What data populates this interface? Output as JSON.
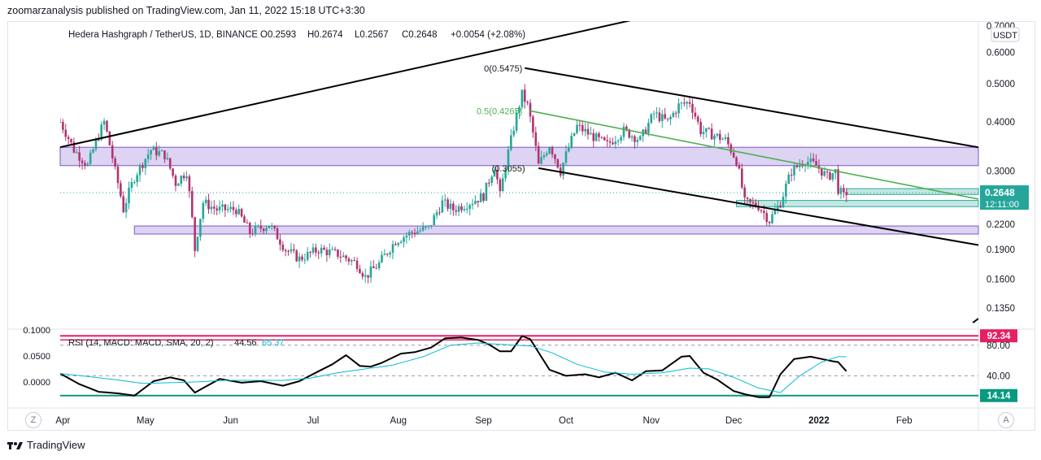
{
  "header": {
    "published": "zoomarzanalysis published on TradingView.com, Jan 11, 2022 15:18 UTC+3:30"
  },
  "legend": {
    "symbol": "Hedera Hashgraph / TetherUS, 1D, BINANCE",
    "open": "O0.2593",
    "high": "H0.2674",
    "low": "L0.2567",
    "close": "C0.2648",
    "change": "+0.0054 (+2.08%)"
  },
  "footer": {
    "brand": "TradingView",
    "zoom_button": "Z",
    "auto_button": "A"
  },
  "colors": {
    "up": "#26a69a",
    "down": "#b2346e",
    "zone_fill": "#d4c8ef",
    "zone_border": "#7e57c2",
    "green_zone": "#b2dfdb",
    "fib_green": "#4caf50",
    "rsi_line": "#000000",
    "ma_line": "#00bcd4",
    "upper_band": "#e91e63",
    "lower_band": "#089981",
    "price_badge": "#26a69a"
  },
  "chart_data": [
    {
      "type": "candlestick",
      "title": "",
      "symbol": "Hedera Hashgraph / TetherUS, 1D, BINANCE",
      "y_scale": "log",
      "currency_label": "USDT",
      "ylim": [
        0.12,
        0.72
      ],
      "y_ticks": [
        "0.7000",
        "0.6000",
        "0.5000",
        "0.4000",
        "0.3000",
        "0.2200",
        "0.1900",
        "0.1600",
        "0.1350"
      ],
      "y_tick_values": [
        0.7,
        0.6,
        0.5,
        0.4,
        0.3,
        0.22,
        0.19,
        0.16,
        0.135
      ],
      "x_ticks": [
        "Apr",
        "May",
        "Jun",
        "Jul",
        "Aug",
        "Sep",
        "Oct",
        "Nov",
        "Dec",
        "2022",
        "Feb"
      ],
      "x_tick_dates": [
        "2021-04-01",
        "2021-05-01",
        "2021-06-01",
        "2021-07-01",
        "2021-08-01",
        "2021-09-01",
        "2021-10-01",
        "2021-11-01",
        "2021-12-01",
        "2022-01-01",
        "2022-02-01"
      ],
      "x_range": [
        "2021-03-31",
        "2022-02-28"
      ],
      "last_price": {
        "label": "0.2648",
        "value": 0.2648,
        "countdown": "12:11:00"
      },
      "closes": [
        {
          "date": "2021-03-31",
          "close": 0.4
        },
        {
          "date": "2021-04-05",
          "close": 0.34
        },
        {
          "date": "2021-04-10",
          "close": 0.31
        },
        {
          "date": "2021-04-16",
          "close": 0.4
        },
        {
          "date": "2021-04-20",
          "close": 0.3
        },
        {
          "date": "2021-04-23",
          "close": 0.24
        },
        {
          "date": "2021-04-27",
          "close": 0.29
        },
        {
          "date": "2021-05-03",
          "close": 0.34
        },
        {
          "date": "2021-05-08",
          "close": 0.33
        },
        {
          "date": "2021-05-12",
          "close": 0.28
        },
        {
          "date": "2021-05-16",
          "close": 0.3
        },
        {
          "date": "2021-05-19",
          "close": 0.19
        },
        {
          "date": "2021-05-22",
          "close": 0.25
        },
        {
          "date": "2021-05-27",
          "close": 0.24
        },
        {
          "date": "2021-06-03",
          "close": 0.24
        },
        {
          "date": "2021-06-08",
          "close": 0.21
        },
        {
          "date": "2021-06-15",
          "close": 0.22
        },
        {
          "date": "2021-06-21",
          "close": 0.19
        },
        {
          "date": "2021-06-26",
          "close": 0.18
        },
        {
          "date": "2021-07-03",
          "close": 0.19
        },
        {
          "date": "2021-07-10",
          "close": 0.185
        },
        {
          "date": "2021-07-17",
          "close": 0.175
        },
        {
          "date": "2021-07-20",
          "close": 0.162
        },
        {
          "date": "2021-07-25",
          "close": 0.175
        },
        {
          "date": "2021-07-31",
          "close": 0.2
        },
        {
          "date": "2021-08-06",
          "close": 0.21
        },
        {
          "date": "2021-08-12",
          "close": 0.215
        },
        {
          "date": "2021-08-17",
          "close": 0.25
        },
        {
          "date": "2021-08-21",
          "close": 0.24
        },
        {
          "date": "2021-08-27",
          "close": 0.25
        },
        {
          "date": "2021-09-01",
          "close": 0.26
        },
        {
          "date": "2021-09-05",
          "close": 0.31
        },
        {
          "date": "2021-09-07",
          "close": 0.26
        },
        {
          "date": "2021-09-11",
          "close": 0.36
        },
        {
          "date": "2021-09-15",
          "close": 0.47
        },
        {
          "date": "2021-09-17",
          "close": 0.44
        },
        {
          "date": "2021-09-21",
          "close": 0.31
        },
        {
          "date": "2021-09-25",
          "close": 0.35
        },
        {
          "date": "2021-09-29",
          "close": 0.3
        },
        {
          "date": "2021-10-05",
          "close": 0.39
        },
        {
          "date": "2021-10-10",
          "close": 0.37
        },
        {
          "date": "2021-10-16",
          "close": 0.35
        },
        {
          "date": "2021-10-22",
          "close": 0.38
        },
        {
          "date": "2021-10-28",
          "close": 0.36
        },
        {
          "date": "2021-11-02",
          "close": 0.42
        },
        {
          "date": "2021-11-07",
          "close": 0.4
        },
        {
          "date": "2021-11-11",
          "close": 0.44
        },
        {
          "date": "2021-11-15",
          "close": 0.45
        },
        {
          "date": "2021-11-19",
          "close": 0.38
        },
        {
          "date": "2021-11-24",
          "close": 0.37
        },
        {
          "date": "2021-11-28",
          "close": 0.36
        },
        {
          "date": "2021-12-02",
          "close": 0.32
        },
        {
          "date": "2021-12-05",
          "close": 0.25
        },
        {
          "date": "2021-12-10",
          "close": 0.245
        },
        {
          "date": "2021-12-14",
          "close": 0.225
        },
        {
          "date": "2021-12-18",
          "close": 0.25
        },
        {
          "date": "2021-12-22",
          "close": 0.3
        },
        {
          "date": "2021-12-27",
          "close": 0.32
        },
        {
          "date": "2021-12-31",
          "close": 0.31
        },
        {
          "date": "2022-01-04",
          "close": 0.29
        },
        {
          "date": "2022-01-07",
          "close": 0.3
        },
        {
          "date": "2022-01-08",
          "close": 0.27
        },
        {
          "date": "2022-01-10",
          "close": 0.2594
        },
        {
          "date": "2022-01-11",
          "close": 0.2648
        }
      ],
      "horizontal_zones": [
        {
          "name": "upper-resistance-zone",
          "from_date": "2021-03-31",
          "to_date": "2022-02-28",
          "low": 0.31,
          "high": 0.345
        },
        {
          "name": "lower-support-zone",
          "from_date": "2021-04-27",
          "to_date": "2022-02-28",
          "low": 0.208,
          "high": 0.218
        },
        {
          "name": "recent-demand-zone",
          "from_date": "2021-12-02",
          "to_date": "2022-02-28",
          "low": 0.244,
          "high": 0.253
        },
        {
          "name": "recent-demand-zone-upper",
          "from_date": "2022-01-11",
          "to_date": "2022-02-28",
          "low": 0.262,
          "high": 0.271
        }
      ],
      "trendlines": [
        {
          "name": "long-term-rising-resistance",
          "color": "#000000",
          "points": [
            [
              "2021-03-31",
              0.345
            ],
            [
              "2021-10-31",
              0.74
            ]
          ]
        },
        {
          "name": "descending-channel-top",
          "color": "#000000",
          "points": [
            [
              "2021-09-16",
              0.5475
            ],
            [
              "2022-02-28",
              0.345
            ]
          ]
        },
        {
          "name": "descending-channel-bottom",
          "color": "#000000",
          "points": [
            [
              "2021-09-21",
              0.3055
            ],
            [
              "2022-02-28",
              0.195
            ]
          ]
        },
        {
          "name": "fib-0.5-line",
          "color": "#4caf50",
          "points": [
            [
              "2021-09-18",
              0.4265
            ],
            [
              "2022-02-28",
              0.255
            ]
          ]
        },
        {
          "name": "channel-extension-top-right",
          "color": "#000000",
          "points": [
            [
              "2022-02-26",
              0.124
            ],
            [
              "2022-02-28",
              0.127
            ]
          ]
        }
      ],
      "annotations": [
        {
          "text": "0(0.5475)",
          "date": "2021-09-16",
          "price": 0.5475
        },
        {
          "text": "0.5(0.4265)",
          "date": "2021-09-16",
          "price": 0.4265
        },
        {
          "text": "(0.3055)",
          "date": "2021-09-17",
          "price": 0.3055
        }
      ]
    },
    {
      "type": "line",
      "title": "",
      "indicator": "RSI (14, MACD: MACD, SMA, 20, 2)",
      "indicator_values": [
        "44.56",
        "65.37"
      ],
      "left_ticks": [
        "0.1000",
        "0.0500",
        "0.0000"
      ],
      "right_ticks": [
        "80.00",
        "40.00"
      ],
      "ylim": [
        0,
        100
      ],
      "bands": [
        {
          "name": "upper-band",
          "label": "92.34",
          "value": 92.34,
          "color": "#e91e63"
        },
        {
          "name": "lower-band",
          "label": "14.14",
          "value": 14.14,
          "color": "#089981"
        }
      ],
      "reference_levels": [
        80,
        40
      ],
      "series": [
        {
          "name": "",
          "color": "#000000",
          "points": [
            [
              "2021-03-31",
              43
            ],
            [
              "2021-04-07",
              29
            ],
            [
              "2021-04-14",
              19
            ],
            [
              "2021-04-21",
              17
            ],
            [
              "2021-04-27",
              14
            ],
            [
              "2021-05-04",
              33
            ],
            [
              "2021-05-10",
              38
            ],
            [
              "2021-05-15",
              34
            ],
            [
              "2021-05-19",
              18
            ],
            [
              "2021-05-24",
              28
            ],
            [
              "2021-05-28",
              36
            ],
            [
              "2021-06-05",
              31
            ],
            [
              "2021-06-12",
              33
            ],
            [
              "2021-06-20",
              27
            ],
            [
              "2021-06-26",
              33
            ],
            [
              "2021-07-03",
              46
            ],
            [
              "2021-07-08",
              55
            ],
            [
              "2021-07-13",
              67
            ],
            [
              "2021-07-18",
              53
            ],
            [
              "2021-07-22",
              52
            ],
            [
              "2021-07-26",
              57
            ],
            [
              "2021-08-02",
              69
            ],
            [
              "2021-08-07",
              71
            ],
            [
              "2021-08-13",
              77
            ],
            [
              "2021-08-18",
              89
            ],
            [
              "2021-08-24",
              90
            ],
            [
              "2021-08-30",
              87
            ],
            [
              "2021-09-03",
              81
            ],
            [
              "2021-09-07",
              72
            ],
            [
              "2021-09-11",
              72
            ],
            [
              "2021-09-15",
              92
            ],
            [
              "2021-09-18",
              88
            ],
            [
              "2021-09-22",
              65
            ],
            [
              "2021-09-25",
              48
            ],
            [
              "2021-10-01",
              40
            ],
            [
              "2021-10-08",
              42
            ],
            [
              "2021-10-13",
              38
            ],
            [
              "2021-10-19",
              44
            ],
            [
              "2021-10-25",
              34
            ],
            [
              "2021-10-30",
              46
            ],
            [
              "2021-11-05",
              47
            ],
            [
              "2021-11-12",
              65
            ],
            [
              "2021-11-15",
              66
            ],
            [
              "2021-11-20",
              44
            ],
            [
              "2021-11-25",
              35
            ],
            [
              "2021-12-01",
              20
            ],
            [
              "2021-12-05",
              16
            ],
            [
              "2021-12-10",
              12
            ],
            [
              "2021-12-14",
              12
            ],
            [
              "2021-12-18",
              42
            ],
            [
              "2021-12-23",
              62
            ],
            [
              "2021-12-29",
              65
            ],
            [
              "2022-01-02",
              62
            ],
            [
              "2022-01-06",
              59
            ],
            [
              "2022-01-08",
              58
            ],
            [
              "2022-01-11",
              46
            ]
          ]
        },
        {
          "name": "",
          "color": "#00bcd4",
          "points": [
            [
              "2021-03-31",
              43
            ],
            [
              "2021-04-10",
              39
            ],
            [
              "2021-04-20",
              35
            ],
            [
              "2021-04-30",
              30
            ],
            [
              "2021-05-10",
              31
            ],
            [
              "2021-05-20",
              32
            ],
            [
              "2021-05-30",
              34
            ],
            [
              "2021-06-10",
              34
            ],
            [
              "2021-06-20",
              34
            ],
            [
              "2021-06-30",
              37
            ],
            [
              "2021-07-10",
              44
            ],
            [
              "2021-07-20",
              49
            ],
            [
              "2021-07-30",
              54
            ],
            [
              "2021-08-10",
              65
            ],
            [
              "2021-08-20",
              80
            ],
            [
              "2021-08-30",
              83
            ],
            [
              "2021-09-08",
              81
            ],
            [
              "2021-09-18",
              79
            ],
            [
              "2021-09-26",
              70
            ],
            [
              "2021-10-05",
              55
            ],
            [
              "2021-10-15",
              45
            ],
            [
              "2021-10-25",
              42
            ],
            [
              "2021-11-05",
              44
            ],
            [
              "2021-11-15",
              50
            ],
            [
              "2021-11-22",
              49
            ],
            [
              "2021-12-01",
              38
            ],
            [
              "2021-12-10",
              24
            ],
            [
              "2021-12-18",
              18
            ],
            [
              "2021-12-25",
              40
            ],
            [
              "2022-01-02",
              58
            ],
            [
              "2022-01-08",
              65
            ],
            [
              "2022-01-11",
              65
            ]
          ]
        }
      ]
    }
  ]
}
